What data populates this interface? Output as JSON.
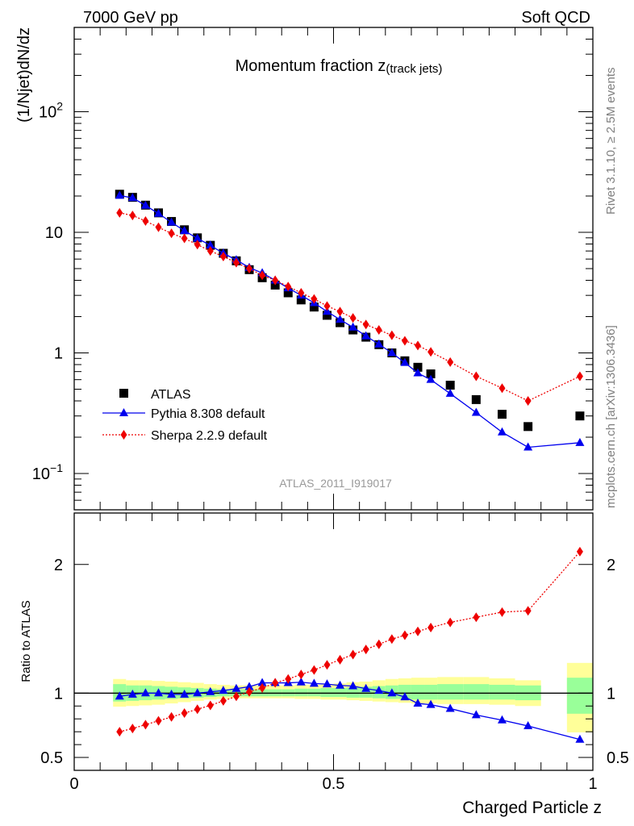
{
  "chart_data": [
    {
      "type": "scatter",
      "header_left": "7000 GeV pp",
      "header_right": "Soft QCD",
      "title": "Momentum fraction z",
      "title_sub": "(track jets)",
      "ylabel": "(1/Njet)dN/dz",
      "yscale": "log",
      "ylim": [
        0.05,
        500
      ],
      "xlim": [
        0,
        1
      ],
      "analysis_id": "ATLAS_2011_I919017",
      "side_text_top": "Rivet 3.1.10, ≥ 2.5M events",
      "side_text_bottom": "mcplots.cern.ch [arXiv:1306.3436]",
      "y_tick_labels": [
        {
          "value": 0.1,
          "base": "10",
          "exp": "−1"
        },
        {
          "value": 1,
          "base": "1",
          "exp": ""
        },
        {
          "value": 10,
          "base": "10",
          "exp": ""
        },
        {
          "value": 100,
          "base": "10",
          "exp": "2"
        }
      ],
      "legend_position": "bottom-left",
      "x": [
        0.0875,
        0.1125,
        0.1375,
        0.1625,
        0.1875,
        0.2125,
        0.2375,
        0.2625,
        0.2875,
        0.3125,
        0.3375,
        0.3625,
        0.3875,
        0.4125,
        0.4375,
        0.4625,
        0.4875,
        0.5125,
        0.5375,
        0.5625,
        0.5875,
        0.6125,
        0.6375,
        0.6625,
        0.6875,
        0.725,
        0.775,
        0.825,
        0.875,
        0.975
      ],
      "series": [
        {
          "name": "ATLAS",
          "style": "square",
          "color": "#000000",
          "values": [
            20.7,
            19.5,
            16.8,
            14.5,
            12.3,
            10.5,
            9.0,
            7.8,
            6.7,
            5.8,
            4.9,
            4.2,
            3.65,
            3.15,
            2.75,
            2.4,
            2.05,
            1.78,
            1.55,
            1.35,
            1.17,
            1.0,
            0.86,
            0.76,
            0.67,
            0.54,
            0.41,
            0.31,
            0.245,
            0.3
          ]
        },
        {
          "name": "Pythia 8.308 default",
          "style": "triangle-line",
          "color": "#0000ee",
          "values": [
            20.2,
            19.3,
            16.7,
            14.3,
            12.1,
            10.3,
            8.9,
            7.8,
            6.7,
            5.9,
            5.1,
            4.6,
            4.0,
            3.45,
            3.0,
            2.6,
            2.2,
            1.89,
            1.63,
            1.38,
            1.18,
            1.0,
            0.83,
            0.68,
            0.6,
            0.46,
            0.32,
            0.22,
            0.165,
            0.18
          ]
        },
        {
          "name": "Sherpa 2.2.9 default",
          "style": "diamond-dotted",
          "color": "#ee0000",
          "values": [
            14.5,
            13.8,
            12.4,
            11.0,
            9.8,
            8.9,
            7.9,
            7.0,
            6.3,
            5.6,
            5.0,
            4.4,
            4.0,
            3.55,
            3.15,
            2.8,
            2.45,
            2.2,
            1.95,
            1.72,
            1.55,
            1.4,
            1.26,
            1.15,
            1.02,
            0.84,
            0.64,
            0.51,
            0.4,
            0.64
          ]
        }
      ]
    },
    {
      "type": "scatter",
      "ylabel": "Ratio to ATLAS",
      "xlabel": "Charged Particle z",
      "ylim": [
        0.4,
        2.4
      ],
      "xlim": [
        0,
        1
      ],
      "y_tick_labels": [
        "0.5",
        "1",
        "2"
      ],
      "x_tick_labels": [
        "0",
        "0.5",
        "1"
      ],
      "reference_line": 1,
      "uncertainty_bands": [
        {
          "x0": 0.075,
          "x1": 0.1,
          "yellow": [
            0.895,
            1.11
          ],
          "green": [
            0.935,
            1.07
          ]
        },
        {
          "x0": 0.1,
          "x1": 0.125,
          "yellow": [
            0.9,
            1.1
          ],
          "green": [
            0.94,
            1.06
          ]
        },
        {
          "x0": 0.125,
          "x1": 0.15,
          "yellow": [
            0.905,
            1.1
          ],
          "green": [
            0.945,
            1.06
          ]
        },
        {
          "x0": 0.15,
          "x1": 0.175,
          "yellow": [
            0.91,
            1.095
          ],
          "green": [
            0.95,
            1.055
          ]
        },
        {
          "x0": 0.175,
          "x1": 0.2,
          "yellow": [
            0.92,
            1.09
          ],
          "green": [
            0.955,
            1.05
          ]
        },
        {
          "x0": 0.2,
          "x1": 0.225,
          "yellow": [
            0.93,
            1.085
          ],
          "green": [
            0.96,
            1.045
          ]
        },
        {
          "x0": 0.225,
          "x1": 0.25,
          "yellow": [
            0.94,
            1.08
          ],
          "green": [
            0.965,
            1.04
          ]
        },
        {
          "x0": 0.25,
          "x1": 0.275,
          "yellow": [
            0.95,
            1.07
          ],
          "green": [
            0.97,
            1.035
          ]
        },
        {
          "x0": 0.275,
          "x1": 0.3,
          "yellow": [
            0.955,
            1.065
          ],
          "green": [
            0.975,
            1.03
          ]
        },
        {
          "x0": 0.3,
          "x1": 0.325,
          "yellow": [
            0.96,
            1.06
          ],
          "green": [
            0.975,
            1.03
          ]
        },
        {
          "x0": 0.325,
          "x1": 0.35,
          "yellow": [
            0.96,
            1.06
          ],
          "green": [
            0.975,
            1.03
          ]
        },
        {
          "x0": 0.35,
          "x1": 0.375,
          "yellow": [
            0.96,
            1.06
          ],
          "green": [
            0.975,
            1.03
          ]
        },
        {
          "x0": 0.375,
          "x1": 0.4,
          "yellow": [
            0.96,
            1.06
          ],
          "green": [
            0.975,
            1.03
          ]
        },
        {
          "x0": 0.4,
          "x1": 0.425,
          "yellow": [
            0.96,
            1.06
          ],
          "green": [
            0.975,
            1.03
          ]
        },
        {
          "x0": 0.425,
          "x1": 0.45,
          "yellow": [
            0.955,
            1.065
          ],
          "green": [
            0.975,
            1.035
          ]
        },
        {
          "x0": 0.45,
          "x1": 0.475,
          "yellow": [
            0.955,
            1.065
          ],
          "green": [
            0.975,
            1.035
          ]
        },
        {
          "x0": 0.475,
          "x1": 0.5,
          "yellow": [
            0.95,
            1.07
          ],
          "green": [
            0.97,
            1.04
          ]
        },
        {
          "x0": 0.5,
          "x1": 0.525,
          "yellow": [
            0.95,
            1.075
          ],
          "green": [
            0.97,
            1.04
          ]
        },
        {
          "x0": 0.525,
          "x1": 0.55,
          "yellow": [
            0.945,
            1.085
          ],
          "green": [
            0.965,
            1.045
          ]
        },
        {
          "x0": 0.55,
          "x1": 0.575,
          "yellow": [
            0.94,
            1.09
          ],
          "green": [
            0.965,
            1.05
          ]
        },
        {
          "x0": 0.575,
          "x1": 0.6,
          "yellow": [
            0.935,
            1.1
          ],
          "green": [
            0.96,
            1.055
          ]
        },
        {
          "x0": 0.6,
          "x1": 0.625,
          "yellow": [
            0.93,
            1.11
          ],
          "green": [
            0.955,
            1.06
          ]
        },
        {
          "x0": 0.625,
          "x1": 0.65,
          "yellow": [
            0.925,
            1.115
          ],
          "green": [
            0.955,
            1.065
          ]
        },
        {
          "x0": 0.65,
          "x1": 0.675,
          "yellow": [
            0.92,
            1.12
          ],
          "green": [
            0.95,
            1.065
          ]
        },
        {
          "x0": 0.675,
          "x1": 0.7,
          "yellow": [
            0.92,
            1.12
          ],
          "green": [
            0.95,
            1.065
          ]
        },
        {
          "x0": 0.7,
          "x1": 0.75,
          "yellow": [
            0.915,
            1.125
          ],
          "green": [
            0.95,
            1.07
          ]
        },
        {
          "x0": 0.75,
          "x1": 0.8,
          "yellow": [
            0.915,
            1.125
          ],
          "green": [
            0.95,
            1.07
          ]
        },
        {
          "x0": 0.8,
          "x1": 0.85,
          "yellow": [
            0.91,
            1.115
          ],
          "green": [
            0.95,
            1.065
          ]
        },
        {
          "x0": 0.85,
          "x1": 0.9,
          "yellow": [
            0.9,
            1.1
          ],
          "green": [
            0.945,
            1.06
          ]
        },
        {
          "x0": 0.95,
          "x1": 1.0,
          "yellow": [
            0.695,
            1.235
          ],
          "green": [
            0.84,
            1.12
          ]
        }
      ],
      "x": [
        0.0875,
        0.1125,
        0.1375,
        0.1625,
        0.1875,
        0.2125,
        0.2375,
        0.2625,
        0.2875,
        0.3125,
        0.3375,
        0.3625,
        0.3875,
        0.4125,
        0.4375,
        0.4625,
        0.4875,
        0.5125,
        0.5375,
        0.5625,
        0.5875,
        0.6125,
        0.6375,
        0.6625,
        0.6875,
        0.725,
        0.775,
        0.825,
        0.875,
        0.975
      ],
      "series": [
        {
          "name": "Pythia 8.308 default",
          "style": "triangle-line",
          "color": "#0000ee",
          "values": [
            0.975,
            0.99,
            1.0,
            1.0,
            0.99,
            0.99,
            1.0,
            1.01,
            1.02,
            1.035,
            1.05,
            1.08,
            1.08,
            1.08,
            1.085,
            1.075,
            1.07,
            1.06,
            1.055,
            1.035,
            1.02,
            1.0,
            0.97,
            0.92,
            0.91,
            0.88,
            0.83,
            0.79,
            0.745,
            0.64
          ]
        },
        {
          "name": "Sherpa 2.2.9 default",
          "style": "diamond-dotted",
          "color": "#ee0000",
          "values": [
            0.7,
            0.725,
            0.755,
            0.785,
            0.815,
            0.845,
            0.875,
            0.905,
            0.94,
            0.975,
            1.01,
            1.04,
            1.08,
            1.11,
            1.145,
            1.18,
            1.22,
            1.26,
            1.3,
            1.34,
            1.38,
            1.42,
            1.45,
            1.48,
            1.51,
            1.55,
            1.59,
            1.63,
            1.64,
            2.1
          ]
        }
      ]
    }
  ]
}
